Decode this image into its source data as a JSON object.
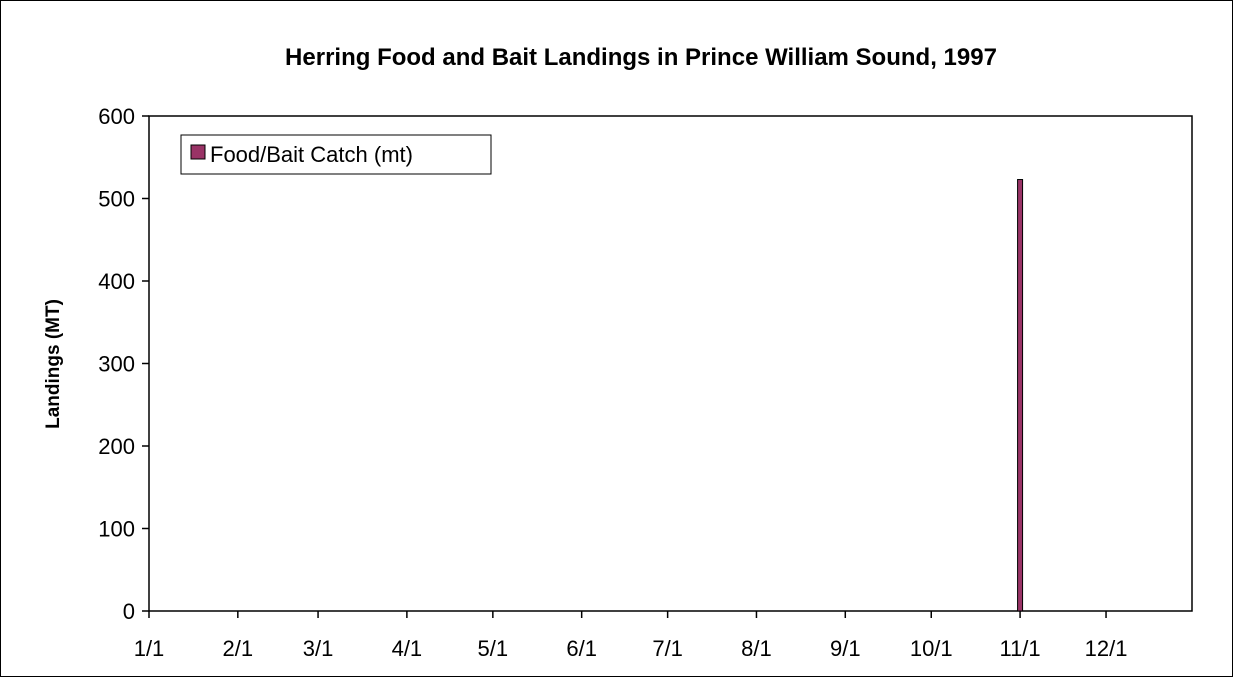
{
  "chart_data": {
    "type": "bar",
    "title": "Herring Food and Bait Landings in Prince William Sound, 1997",
    "xlabel": "",
    "ylabel": "Landings (MT)",
    "x_tick_labels": [
      "1/1",
      "2/1",
      "3/1",
      "4/1",
      "5/1",
      "6/1",
      "7/1",
      "8/1",
      "9/1",
      "10/1",
      "11/1",
      "12/1"
    ],
    "y_ticks": [
      0,
      100,
      200,
      300,
      400,
      500,
      600
    ],
    "ylim": [
      0,
      600
    ],
    "xlim": [
      "1997-01-01",
      "1997-12-31"
    ],
    "grid": false,
    "legend_position": "top-left",
    "series": [
      {
        "name": "Food/Bait Catch (mt)",
        "color": "#993366",
        "points": [
          {
            "x": "1997-11-01",
            "y": 523
          }
        ]
      }
    ]
  }
}
